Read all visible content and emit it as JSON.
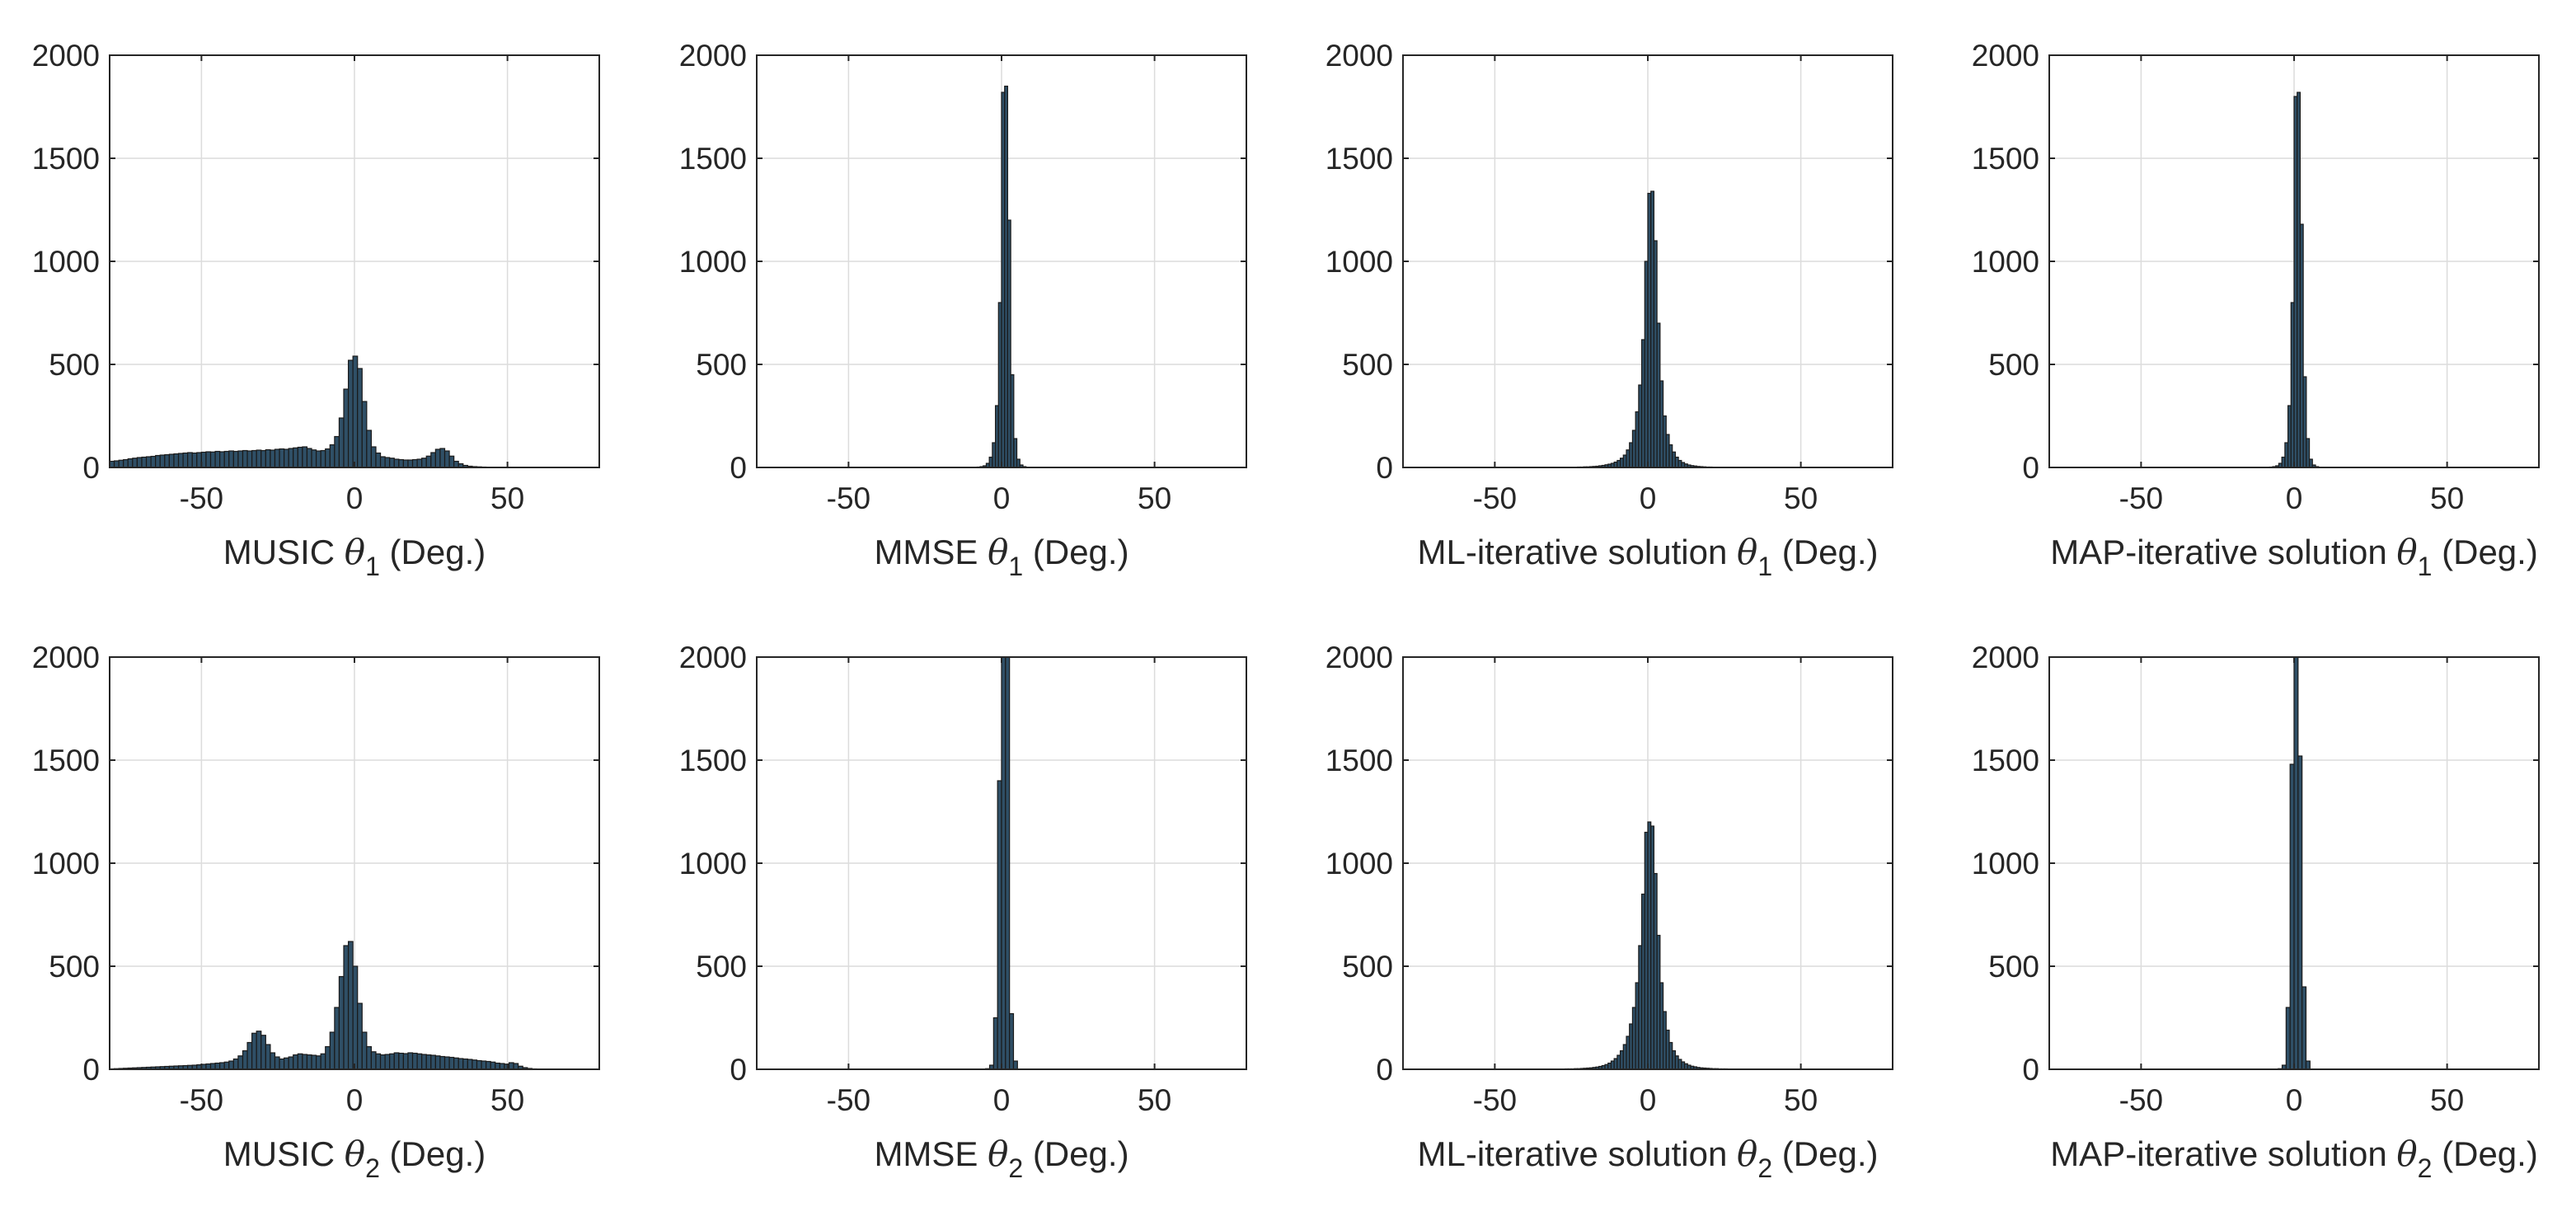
{
  "figure": {
    "layout": "2 rows x 4 columns of histograms"
  },
  "chart_data": [
    {
      "type": "bar",
      "name": "music-theta1",
      "title": "",
      "xlabel_prefix": "MUSIC ",
      "symbol": "θ",
      "subscript": "1",
      "xlabel_suffix": " (Deg.)",
      "xlim": [
        -80,
        80
      ],
      "ylim": [
        0,
        2000
      ],
      "xticks": [
        -50,
        0,
        50
      ],
      "xtick_labels": [
        "-50",
        "0",
        "50"
      ],
      "yticks": [
        0,
        500,
        1000,
        1500,
        2000
      ],
      "ytick_labels": [
        "0",
        "500",
        "1000",
        "1500",
        "2000"
      ],
      "grid": true,
      "bin_width": 1.5,
      "bar_color": "#2f4f66",
      "edge_color": "#1a1a1a",
      "x": [
        -80,
        -78.5,
        -77,
        -75.5,
        -74,
        -72.5,
        -71,
        -69.5,
        -68,
        -66.5,
        -65,
        -63.5,
        -62,
        -60.5,
        -59,
        -57.5,
        -56,
        -54.5,
        -53,
        -51.5,
        -50,
        -48.5,
        -47,
        -45.5,
        -44,
        -42.5,
        -41,
        -39.5,
        -38,
        -36.5,
        -35,
        -33.5,
        -32,
        -30.5,
        -29,
        -27.5,
        -26,
        -24.5,
        -23,
        -21.5,
        -20,
        -18.5,
        -17,
        -15.5,
        -14,
        -12.5,
        -11,
        -9.5,
        -8,
        -6.5,
        -5,
        -3.5,
        -2,
        -0.5,
        1,
        2.5,
        4,
        5.5,
        7,
        8.5,
        10,
        11.5,
        13,
        14.5,
        16,
        17.5,
        19,
        20.5,
        22,
        23.5,
        25,
        26.5,
        28,
        29.5,
        31,
        32.5,
        34,
        35.5,
        37,
        38.5,
        40,
        41.5,
        43,
        44.5,
        46,
        47.5,
        49,
        50.5,
        52,
        53.5,
        55,
        56.5,
        58,
        59.5
      ],
      "values": [
        30,
        32,
        35,
        38,
        42,
        45,
        48,
        50,
        52,
        54,
        58,
        60,
        62,
        64,
        66,
        68,
        70,
        72,
        70,
        72,
        74,
        76,
        75,
        78,
        76,
        78,
        80,
        78,
        80,
        82,
        80,
        82,
        84,
        82,
        86,
        84,
        88,
        90,
        88,
        92,
        95,
        98,
        100,
        92,
        85,
        80,
        82,
        90,
        110,
        150,
        240,
        380,
        520,
        540,
        480,
        320,
        180,
        100,
        70,
        52,
        48,
        45,
        40,
        38,
        36,
        36,
        38,
        40,
        45,
        55,
        72,
        88,
        92,
        80,
        55,
        30,
        18,
        10,
        6,
        4,
        3,
        2,
        1,
        1,
        1,
        0,
        0,
        0,
        0,
        0,
        0,
        0,
        0,
        0
      ]
    },
    {
      "type": "bar",
      "name": "mmse-theta1",
      "title": "",
      "xlabel_prefix": "MMSE ",
      "symbol": "θ",
      "subscript": "1",
      "xlabel_suffix": " (Deg.)",
      "xlim": [
        -80,
        80
      ],
      "ylim": [
        0,
        2000
      ],
      "xticks": [
        -50,
        0,
        50
      ],
      "xtick_labels": [
        "-50",
        "0",
        "50"
      ],
      "yticks": [
        0,
        500,
        1000,
        1500,
        2000
      ],
      "ytick_labels": [
        "0",
        "500",
        "1000",
        "1500",
        "2000"
      ],
      "grid": true,
      "bin_width": 1,
      "bar_color": "#2f4f66",
      "edge_color": "#1a1a1a",
      "x": [
        -9,
        -8,
        -7,
        -6,
        -5,
        -4,
        -3,
        -2,
        -1,
        0,
        1,
        2,
        3,
        4,
        5,
        6,
        7,
        8
      ],
      "values": [
        1,
        2,
        4,
        8,
        20,
        50,
        120,
        300,
        800,
        1820,
        1850,
        1200,
        450,
        140,
        40,
        12,
        4,
        1
      ]
    },
    {
      "type": "bar",
      "name": "ml-iterative-theta1",
      "title": "",
      "xlabel_prefix": "ML-iterative solution ",
      "symbol": "θ",
      "subscript": "1",
      "xlabel_suffix": " (Deg.)",
      "xlim": [
        -80,
        80
      ],
      "ylim": [
        0,
        2000
      ],
      "xticks": [
        -50,
        0,
        50
      ],
      "xtick_labels": [
        "-50",
        "0",
        "50"
      ],
      "yticks": [
        0,
        500,
        1000,
        1500,
        2000
      ],
      "ytick_labels": [
        "0",
        "500",
        "1000",
        "1500",
        "2000"
      ],
      "grid": true,
      "bin_width": 1,
      "bar_color": "#2f4f66",
      "edge_color": "#1a1a1a",
      "x": [
        -25,
        -24,
        -23,
        -22,
        -21,
        -20,
        -19,
        -18,
        -17,
        -16,
        -15,
        -14,
        -13,
        -12,
        -11,
        -10,
        -9,
        -8,
        -7,
        -6,
        -5,
        -4,
        -3,
        -2,
        -1,
        0,
        1,
        2,
        3,
        4,
        5,
        6,
        7,
        8,
        9,
        10,
        11,
        12,
        13,
        14,
        15,
        16,
        17,
        18,
        19,
        20,
        21,
        22,
        23,
        24
      ],
      "values": [
        1,
        1,
        2,
        2,
        3,
        3,
        4,
        5,
        6,
        8,
        10,
        13,
        16,
        20,
        26,
        34,
        45,
        60,
        85,
        120,
        180,
        270,
        400,
        620,
        1000,
        1330,
        1340,
        1100,
        700,
        420,
        250,
        160,
        110,
        75,
        50,
        34,
        24,
        17,
        12,
        9,
        7,
        5,
        4,
        3,
        2,
        2,
        1,
        1,
        1,
        1
      ]
    },
    {
      "type": "bar",
      "name": "map-iterative-theta1",
      "title": "",
      "xlabel_prefix": "MAP-iterative solution ",
      "symbol": "θ",
      "subscript": "1",
      "xlabel_suffix": " (Deg.)",
      "xlim": [
        -80,
        80
      ],
      "ylim": [
        0,
        2000
      ],
      "xticks": [
        -50,
        0,
        50
      ],
      "xtick_labels": [
        "-50",
        "0",
        "50"
      ],
      "yticks": [
        0,
        500,
        1000,
        1500,
        2000
      ],
      "ytick_labels": [
        "0",
        "500",
        "1000",
        "1500",
        "2000"
      ],
      "grid": true,
      "bin_width": 1,
      "bar_color": "#2f4f66",
      "edge_color": "#1a1a1a",
      "x": [
        -9,
        -8,
        -7,
        -6,
        -5,
        -4,
        -3,
        -2,
        -1,
        0,
        1,
        2,
        3,
        4,
        5,
        6,
        7,
        8
      ],
      "values": [
        1,
        2,
        4,
        8,
        20,
        50,
        120,
        300,
        800,
        1800,
        1820,
        1180,
        440,
        140,
        40,
        12,
        4,
        1
      ]
    },
    {
      "type": "bar",
      "name": "music-theta2",
      "title": "",
      "xlabel_prefix": "MUSIC ",
      "symbol": "θ",
      "subscript": "2",
      "xlabel_suffix": " (Deg.)",
      "xlim": [
        -80,
        80
      ],
      "ylim": [
        0,
        2000
      ],
      "xticks": [
        -50,
        0,
        50
      ],
      "xtick_labels": [
        "-50",
        "0",
        "50"
      ],
      "yticks": [
        0,
        500,
        1000,
        1500,
        2000
      ],
      "ytick_labels": [
        "0",
        "500",
        "1000",
        "1500",
        "2000"
      ],
      "grid": true,
      "bin_width": 1.5,
      "bar_color": "#2f4f66",
      "edge_color": "#1a1a1a",
      "x": [
        -80,
        -78.5,
        -77,
        -75.5,
        -74,
        -72.5,
        -71,
        -69.5,
        -68,
        -66.5,
        -65,
        -63.5,
        -62,
        -60.5,
        -59,
        -57.5,
        -56,
        -54.5,
        -53,
        -51.5,
        -50,
        -48.5,
        -47,
        -45.5,
        -44,
        -42.5,
        -41,
        -39.5,
        -38,
        -36.5,
        -35,
        -33.5,
        -32,
        -30.5,
        -29,
        -27.5,
        -26,
        -24.5,
        -23,
        -21.5,
        -20,
        -18.5,
        -17,
        -15.5,
        -14,
        -12.5,
        -11,
        -9.5,
        -8,
        -6.5,
        -5,
        -3.5,
        -2,
        -0.5,
        1,
        2.5,
        4,
        5.5,
        7,
        8.5,
        10,
        11.5,
        13,
        14.5,
        16,
        17.5,
        19,
        20.5,
        22,
        23.5,
        25,
        26.5,
        28,
        29.5,
        31,
        32.5,
        34,
        35.5,
        37,
        38.5,
        40,
        41.5,
        43,
        44.5,
        46,
        47.5,
        49,
        50.5,
        52,
        53.5,
        55,
        56.5,
        58,
        59.5
      ],
      "values": [
        2,
        3,
        4,
        5,
        6,
        7,
        8,
        9,
        10,
        11,
        12,
        13,
        14,
        15,
        16,
        17,
        18,
        19,
        20,
        22,
        24,
        26,
        28,
        30,
        32,
        35,
        40,
        50,
        65,
        90,
        130,
        175,
        185,
        165,
        120,
        80,
        60,
        50,
        55,
        60,
        70,
        75,
        72,
        70,
        68,
        65,
        75,
        110,
        180,
        300,
        450,
        600,
        620,
        500,
        320,
        180,
        110,
        85,
        75,
        70,
        72,
        75,
        80,
        78,
        76,
        80,
        78,
        75,
        72,
        70,
        68,
        65,
        62,
        60,
        58,
        55,
        52,
        50,
        48,
        45,
        42,
        40,
        38,
        35,
        30,
        28,
        25,
        32,
        28,
        15,
        8,
        4,
        2,
        1
      ]
    },
    {
      "type": "bar",
      "name": "mmse-theta2",
      "title": "",
      "xlabel_prefix": "MMSE ",
      "symbol": "θ",
      "subscript": "2",
      "xlabel_suffix": " (Deg.)",
      "xlim": [
        -80,
        80
      ],
      "ylim": [
        0,
        2000
      ],
      "xticks": [
        -50,
        0,
        50
      ],
      "xtick_labels": [
        "-50",
        "0",
        "50"
      ],
      "yticks": [
        0,
        500,
        1000,
        1500,
        2000
      ],
      "ytick_labels": [
        "0",
        "500",
        "1000",
        "1500",
        "2000"
      ],
      "grid": true,
      "bin_width": 1.3,
      "bar_color": "#2f4f66",
      "edge_color": "#1a1a1a",
      "x": [
        -5.2,
        -3.9,
        -2.6,
        -1.3,
        0,
        1.3,
        2.6,
        3.9
      ],
      "values": [
        3,
        20,
        250,
        1400,
        2000,
        2000,
        270,
        40
      ]
    },
    {
      "type": "bar",
      "name": "ml-iterative-theta2",
      "title": "",
      "xlabel_prefix": "ML-iterative solution ",
      "symbol": "θ",
      "subscript": "2",
      "xlabel_suffix": " (Deg.)",
      "xlim": [
        -80,
        80
      ],
      "ylim": [
        0,
        2000
      ],
      "xticks": [
        -50,
        0,
        50
      ],
      "xtick_labels": [
        "-50",
        "0",
        "50"
      ],
      "yticks": [
        0,
        500,
        1000,
        1500,
        2000
      ],
      "ytick_labels": [
        "0",
        "500",
        "1000",
        "1500",
        "2000"
      ],
      "grid": true,
      "bin_width": 1,
      "bar_color": "#2f4f66",
      "edge_color": "#1a1a1a",
      "x": [
        -30,
        -29,
        -28,
        -27,
        -26,
        -25,
        -24,
        -23,
        -22,
        -21,
        -20,
        -19,
        -18,
        -17,
        -16,
        -15,
        -14,
        -13,
        -12,
        -11,
        -10,
        -9,
        -8,
        -7,
        -6,
        -5,
        -4,
        -3,
        -2,
        -1,
        0,
        1,
        2,
        3,
        4,
        5,
        6,
        7,
        8,
        9,
        10,
        11,
        12,
        13,
        14,
        15,
        16,
        17,
        18,
        19,
        20,
        21,
        22,
        23,
        24,
        25,
        26,
        27,
        28,
        29
      ],
      "values": [
        1,
        1,
        1,
        2,
        2,
        2,
        3,
        3,
        4,
        5,
        6,
        7,
        9,
        11,
        14,
        18,
        23,
        30,
        40,
        52,
        68,
        90,
        120,
        160,
        220,
        300,
        420,
        600,
        850,
        1150,
        1200,
        1180,
        950,
        650,
        420,
        280,
        190,
        130,
        90,
        65,
        48,
        36,
        27,
        20,
        15,
        12,
        9,
        7,
        6,
        5,
        4,
        3,
        3,
        2,
        2,
        2,
        1,
        1,
        1,
        1
      ]
    },
    {
      "type": "bar",
      "name": "map-iterative-theta2",
      "title": "",
      "xlabel_prefix": "MAP-iterative solution ",
      "symbol": "θ",
      "subscript": "2",
      "xlabel_suffix": " (Deg.)",
      "xlim": [
        -80,
        80
      ],
      "ylim": [
        0,
        2000
      ],
      "xticks": [
        -50,
        0,
        50
      ],
      "xtick_labels": [
        "-50",
        "0",
        "50"
      ],
      "yticks": [
        0,
        500,
        1000,
        1500,
        2000
      ],
      "ytick_labels": [
        "0",
        "500",
        "1000",
        "1500",
        "2000"
      ],
      "grid": true,
      "bin_width": 1.3,
      "bar_color": "#2f4f66",
      "edge_color": "#1a1a1a",
      "x": [
        -5.2,
        -3.9,
        -2.6,
        -1.3,
        0,
        1.3,
        2.6,
        3.9
      ],
      "values": [
        3,
        20,
        300,
        1480,
        2000,
        1520,
        400,
        40
      ]
    }
  ]
}
